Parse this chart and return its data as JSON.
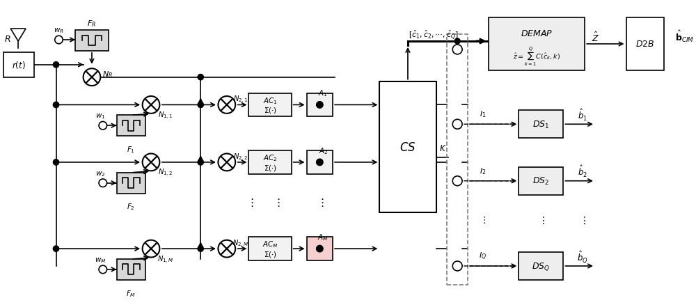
{
  "bg_color": "#ffffff",
  "line_color": "#000000",
  "lw": 1.2
}
